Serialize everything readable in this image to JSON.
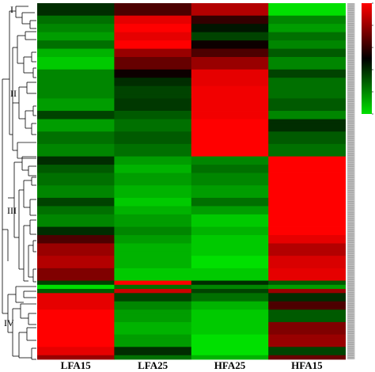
{
  "chart_data": {
    "type": "heatmap",
    "title": "",
    "columns": [
      "LFA15",
      "LFA25",
      "HFA25",
      "HFA15"
    ],
    "cluster_labels": [
      "I",
      "II",
      "III",
      "IV"
    ],
    "colorscale": {
      "low": "#00e000",
      "mid": "#000000",
      "high": "#ff0000",
      "range": [
        -1,
        1
      ]
    },
    "grid": false,
    "legend_position": "top-right",
    "colorbar_tick_labels": [
      "",
      "",
      "",
      "",
      "",
      ""
    ],
    "row_labels_visible": false,
    "segments": [
      {
        "rows": 3,
        "values": [
          -0.2,
          0.3,
          0.7,
          -1.0
        ]
      },
      {
        "rows": 2,
        "values": [
          -0.5,
          0.9,
          0.2,
          -0.6
        ]
      },
      {
        "rows": 2,
        "values": [
          -0.6,
          1.0,
          -0.1,
          -0.7
        ]
      },
      {
        "rows": 2,
        "values": [
          -0.7,
          0.9,
          -0.3,
          -0.5
        ]
      },
      {
        "rows": 2,
        "values": [
          -0.5,
          1.0,
          0.05,
          -0.6
        ]
      },
      {
        "rows": 2,
        "values": [
          -0.8,
          0.6,
          0.3,
          -0.4
        ]
      },
      {
        "rows": 3,
        "values": [
          -0.9,
          0.4,
          0.6,
          -0.6
        ]
      },
      {
        "rows": 2,
        "values": [
          -0.6,
          0.05,
          0.9,
          -0.3
        ]
      },
      {
        "rows": 2,
        "values": [
          -0.6,
          -0.2,
          0.9,
          -0.5
        ]
      },
      {
        "rows": 3,
        "values": [
          -0.6,
          -0.3,
          0.95,
          -0.5
        ]
      },
      {
        "rows": 3,
        "values": [
          -0.7,
          -0.25,
          0.95,
          -0.4
        ]
      },
      {
        "rows": 2,
        "values": [
          -0.3,
          -0.4,
          0.95,
          -0.6
        ]
      },
      {
        "rows": 3,
        "values": [
          -0.7,
          -0.5,
          1.0,
          -0.2
        ]
      },
      {
        "rows": 3,
        "values": [
          -0.5,
          -0.4,
          1.0,
          -0.4
        ]
      },
      {
        "rows": 3,
        "values": [
          -0.6,
          -0.5,
          1.0,
          -0.5
        ]
      },
      {
        "rows": 2,
        "values": [
          -0.2,
          -0.7,
          -0.6,
          1.0
        ]
      },
      {
        "rows": 2,
        "values": [
          -0.4,
          -0.8,
          -0.5,
          1.0
        ]
      },
      {
        "rows": 3,
        "values": [
          -0.5,
          -0.7,
          -0.6,
          1.0
        ]
      },
      {
        "rows": 3,
        "values": [
          -0.6,
          -0.8,
          -0.7,
          1.0
        ]
      },
      {
        "rows": 2,
        "values": [
          -0.3,
          -0.9,
          -0.5,
          1.0
        ]
      },
      {
        "rows": 2,
        "values": [
          -0.5,
          -0.8,
          -0.7,
          1.0
        ]
      },
      {
        "rows": 3,
        "values": [
          -0.6,
          -0.7,
          -0.9,
          1.0
        ]
      },
      {
        "rows": 2,
        "values": [
          -0.2,
          -0.6,
          -0.8,
          1.0
        ]
      },
      {
        "rows": 2,
        "values": [
          0.3,
          -0.7,
          -0.9,
          0.9
        ]
      },
      {
        "rows": 3,
        "values": [
          0.6,
          -0.8,
          -0.9,
          0.7
        ]
      },
      {
        "rows": 3,
        "values": [
          0.7,
          -0.8,
          -1.0,
          0.85
        ]
      },
      {
        "rows": 3,
        "values": [
          0.5,
          -0.9,
          -0.9,
          0.9
        ]
      },
      {
        "rows": 1,
        "values": [
          -0.3,
          1.0,
          -0.2,
          -0.4
        ]
      },
      {
        "rows": 1,
        "values": [
          -1.0,
          -0.5,
          -0.6,
          -0.7
        ]
      },
      {
        "rows": 1,
        "values": [
          -0.4,
          0.8,
          -0.3,
          0.6
        ]
      },
      {
        "rows": 2,
        "values": [
          0.9,
          -0.3,
          -0.5,
          -0.2
        ]
      },
      {
        "rows": 2,
        "values": [
          0.9,
          -0.6,
          -0.8,
          0.3
        ]
      },
      {
        "rows": 3,
        "values": [
          1.0,
          -0.7,
          -0.9,
          -0.4
        ]
      },
      {
        "rows": 3,
        "values": [
          1.0,
          -0.8,
          -0.9,
          0.5
        ]
      },
      {
        "rows": 3,
        "values": [
          1.0,
          -0.7,
          -1.0,
          0.6
        ]
      },
      {
        "rows": 2,
        "values": [
          0.9,
          -0.2,
          -1.0,
          -0.3
        ]
      },
      {
        "rows": 1,
        "values": [
          0.6,
          -0.5,
          -0.8,
          0.4
        ]
      }
    ]
  }
}
